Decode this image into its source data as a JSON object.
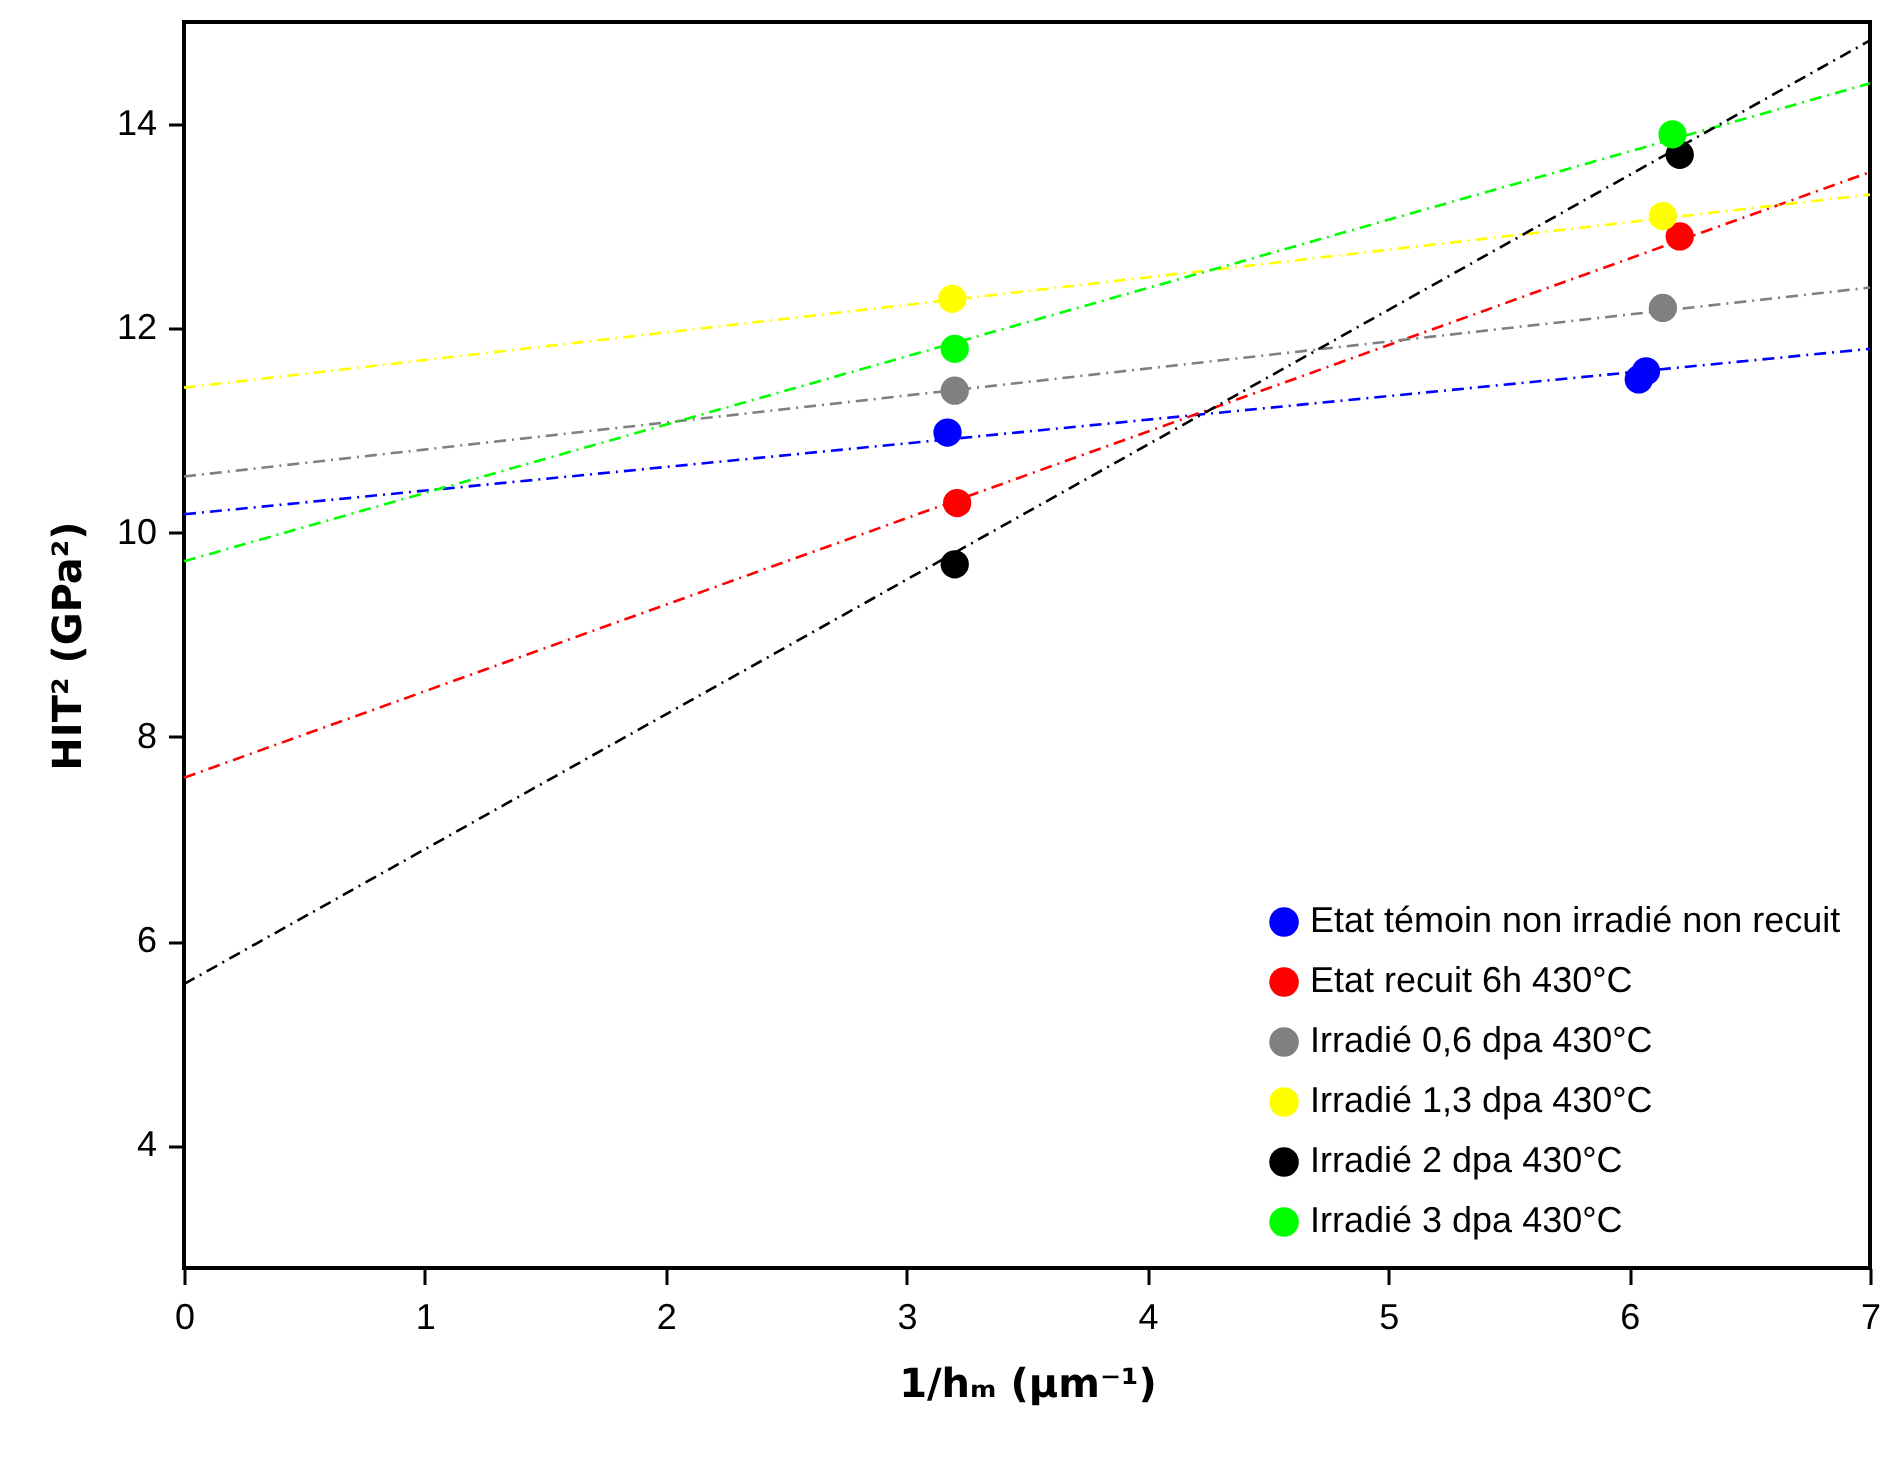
{
  "chart_data": {
    "type": "scatter",
    "xlabel": "1/hₘ (µm⁻¹)",
    "ylabel": "HIT² (GPa²)",
    "xlim": [
      0,
      7
    ],
    "xticks": [
      0,
      1,
      2,
      3,
      4,
      5,
      6,
      7
    ],
    "ylim": [
      2.8,
      15
    ],
    "yticks": [
      4,
      6,
      8,
      10,
      12,
      14
    ],
    "grid": false,
    "legend": "bottom right",
    "marker": "circle",
    "series": [
      {
        "type": "scatter",
        "name": "Etat témoin non irradié non recuit",
        "color": "#0000ff",
        "x": [
          3.17,
          6.04,
          6.07
        ],
        "values": [
          10.98,
          11.5,
          11.58
        ]
      },
      {
        "type": "scatter",
        "name": "Etat recuit 6h 430°C",
        "color": "#ff0000",
        "x": [
          3.21,
          6.21
        ],
        "values": [
          10.29,
          12.9
        ]
      },
      {
        "type": "scatter",
        "name": "Irradié 0,6 dpa 430°C",
        "color": "#808080",
        "x": [
          3.2,
          6.14
        ],
        "values": [
          11.39,
          12.2
        ]
      },
      {
        "type": "scatter",
        "name": "Irradié 1,3 dpa 430°C",
        "color": "#ffff00",
        "x": [
          3.19,
          6.14
        ],
        "values": [
          12.29,
          13.1
        ]
      },
      {
        "type": "scatter",
        "name": "Irradié 2 dpa 430°C",
        "color": "#000000",
        "x": [
          3.2,
          6.21
        ],
        "values": [
          9.69,
          13.7
        ]
      },
      {
        "type": "scatter",
        "name": "Irradié 3 dpa 430°C",
        "color": "#00ff00",
        "x": [
          3.2,
          6.18
        ],
        "values": [
          11.8,
          13.9
        ]
      },
      {
        "type": "line",
        "color": "#0000ff",
        "marker": "none",
        "line_style": "dashed",
        "x": [
          0,
          7
        ],
        "values": [
          10.18,
          11.8
        ]
      },
      {
        "type": "line",
        "color": "#ff0000",
        "marker": "none",
        "line_style": "dashed",
        "x": [
          0,
          7
        ],
        "values": [
          7.6,
          13.53
        ]
      },
      {
        "type": "line",
        "color": "#808080",
        "marker": "none",
        "line_style": "dashed",
        "x": [
          0,
          7
        ],
        "values": [
          10.55,
          12.4
        ]
      },
      {
        "type": "line",
        "color": "#ffff00",
        "marker": "none",
        "line_style": "dashed",
        "x": [
          0,
          7
        ],
        "values": [
          11.42,
          13.31
        ]
      },
      {
        "type": "line",
        "color": "#00ff00",
        "marker": "none",
        "line_style": "dashed",
        "x": [
          0,
          7
        ],
        "values": [
          9.72,
          14.4
        ]
      },
      {
        "type": "line",
        "color": "#000000",
        "marker": "none",
        "line_style": "dashed",
        "x": [
          0,
          7
        ],
        "values": [
          5.58,
          14.82
        ]
      }
    ]
  }
}
